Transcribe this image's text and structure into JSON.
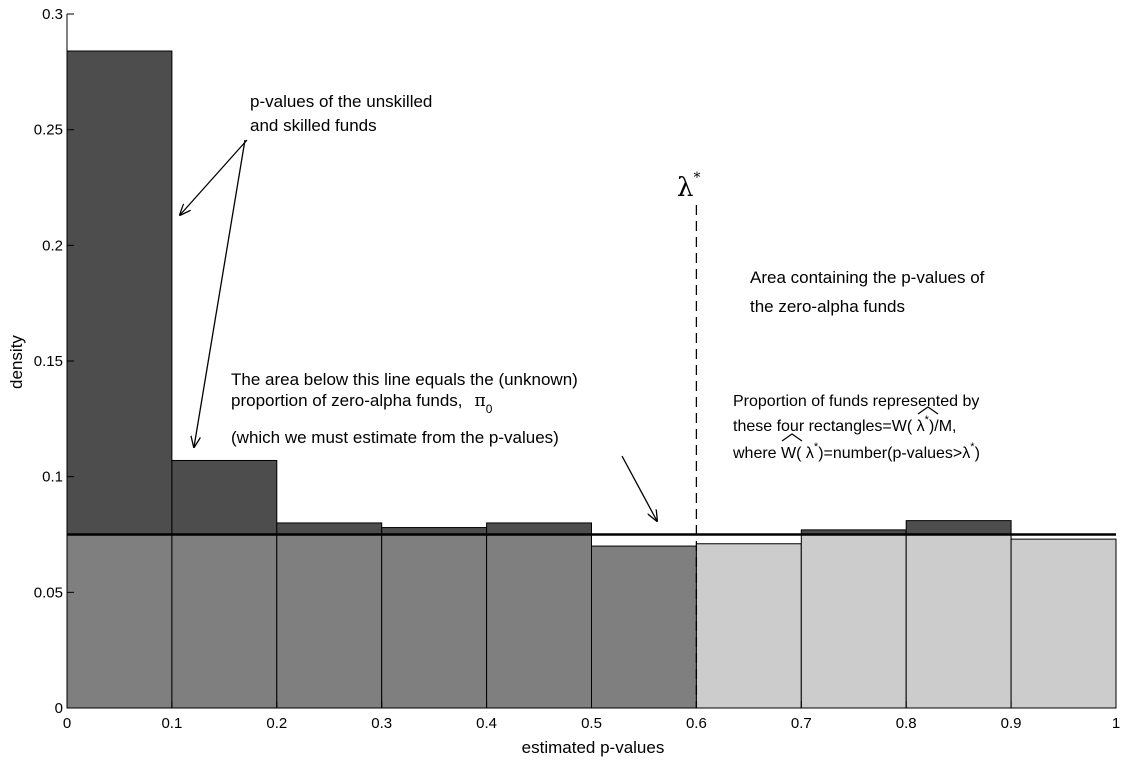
{
  "chart_data": {
    "type": "bar",
    "xlabel": "estimated p-values",
    "ylabel": "density",
    "xlim": [
      0,
      1
    ],
    "ylim": [
      0,
      0.3
    ],
    "x_ticks": [
      "0",
      "0.1",
      "0.2",
      "0.3",
      "0.4",
      "0.5",
      "0.6",
      "0.7",
      "0.8",
      "0.9",
      "1"
    ],
    "y_ticks": [
      "0",
      "0.05",
      "0.1",
      "0.15",
      "0.2",
      "0.25",
      "0.3"
    ],
    "bins": [
      {
        "x0": 0.0,
        "x1": 0.1,
        "value": 0.284,
        "group": "low"
      },
      {
        "x0": 0.1,
        "x1": 0.2,
        "value": 0.107,
        "group": "low"
      },
      {
        "x0": 0.2,
        "x1": 0.3,
        "value": 0.08,
        "group": "low"
      },
      {
        "x0": 0.3,
        "x1": 0.4,
        "value": 0.078,
        "group": "low"
      },
      {
        "x0": 0.4,
        "x1": 0.5,
        "value": 0.08,
        "group": "low"
      },
      {
        "x0": 0.5,
        "x1": 0.6,
        "value": 0.07,
        "group": "low"
      },
      {
        "x0": 0.6,
        "x1": 0.7,
        "value": 0.071,
        "group": "high"
      },
      {
        "x0": 0.7,
        "x1": 0.8,
        "value": 0.077,
        "group": "high"
      },
      {
        "x0": 0.8,
        "x1": 0.9,
        "value": 0.081,
        "group": "high"
      },
      {
        "x0": 0.9,
        "x1": 1.0,
        "value": 0.073,
        "group": "high"
      }
    ],
    "pi0_line": 0.075,
    "lambda_star": 0.6,
    "colors": {
      "excess": "#4d4d4d",
      "zero_alpha_low": "#7f7f7f",
      "zero_alpha_high": "#cccccc",
      "edge": "#000000"
    },
    "annotations": {
      "lambda_symbol": "λ",
      "lambda_superscript": "*",
      "unskilled_line1": "p-values of the unskilled",
      "unskilled_line2": "and skilled funds",
      "area_line1": "Area containing the p-values of",
      "area_line2": "the zero-alpha funds",
      "below_line1": "The area below this line equals the (unknown)",
      "below_line2": "proportion of zero-alpha funds,",
      "pi_symbol": "π",
      "pi_subscript": "0",
      "below_line3": "(which we must estimate from the p-values)",
      "prop_line1": "Proportion of funds represented by",
      "prop_line2a": "these four rectangles=",
      "prop_w": "W",
      "prop_line2b": "( λ",
      "prop_star": "*",
      "prop_line2c": ")/M,",
      "prop_line3a": "where ",
      "prop_line3b": "( λ",
      "prop_line3c": ")=number(p-values>λ",
      "prop_line3d": ")"
    }
  }
}
